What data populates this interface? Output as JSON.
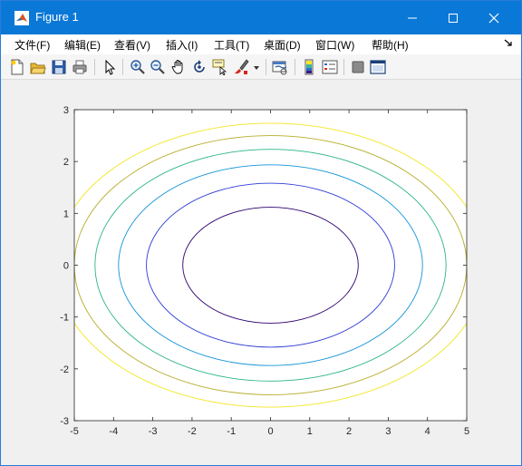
{
  "window": {
    "title": "Figure 1",
    "app_icon": "matlab-icon",
    "controls": [
      "minimize-icon",
      "maximize-icon",
      "close-icon"
    ]
  },
  "menu": {
    "items": [
      {
        "label": "文件(F)"
      },
      {
        "label": "编辑(E)"
      },
      {
        "label": "查看(V)"
      },
      {
        "label": "插入(I)"
      },
      {
        "label": "工具(T)"
      },
      {
        "label": "桌面(D)"
      },
      {
        "label": "窗口(W)"
      },
      {
        "label": "帮助(H)"
      }
    ],
    "overflow_icon": "dock-arrow-icon"
  },
  "toolbar": {
    "icons": [
      "new-figure-icon",
      "open-icon",
      "save-icon",
      "print-icon",
      "edit-plot-icon",
      "zoom-in-icon",
      "zoom-out-icon",
      "pan-icon",
      "rotate-3d-icon",
      "data-cursor-icon",
      "brush-icon",
      "link-plot-icon",
      "colorbar-icon",
      "legend-icon",
      "hide-plot-tools-icon",
      "show-plot-tools-icon"
    ]
  },
  "chart_data": {
    "type": "contour",
    "function": "x.^2/4 + y.^2",
    "levels": [
      1.25,
      2.5,
      3.75,
      5.0,
      6.25,
      7.5
    ],
    "level_colors": [
      "#2d006e",
      "#2c3bd4",
      "#1494d8",
      "#2bb389",
      "#b7ae2a",
      "#f2e621"
    ],
    "xlim": [
      -5,
      5
    ],
    "ylim": [
      -3,
      3
    ],
    "x_ticks": [
      -5,
      -4,
      -3,
      -2,
      -1,
      0,
      1,
      2,
      3,
      4,
      5
    ],
    "y_ticks": [
      -3,
      -2,
      -1,
      0,
      1,
      2,
      3
    ],
    "grid": false,
    "title": "",
    "xlabel": "",
    "ylabel": ""
  }
}
